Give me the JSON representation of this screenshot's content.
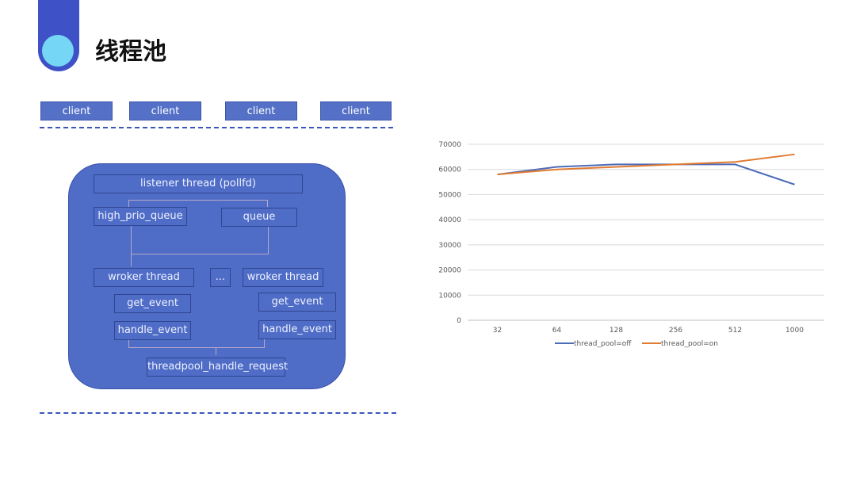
{
  "header": {
    "title": "线程池"
  },
  "clients": [
    "client",
    "client",
    "client",
    "client"
  ],
  "diagram": {
    "listener": "listener thread (pollfd)",
    "high_prio_queue": "high_prio_queue",
    "queue": "queue",
    "worker_left": "wroker thread",
    "ellipsis": "...",
    "worker_right": "wroker thread",
    "get_event_left": "get_event",
    "get_event_right": "get_event",
    "handle_event_left": "handle_event",
    "handle_event_right": "handle_event",
    "request": "threadpool_handle_request"
  },
  "chart_data": {
    "type": "line",
    "categories": [
      "32",
      "64",
      "128",
      "256",
      "512",
      "1000"
    ],
    "series": [
      {
        "name": "thread_pool=off",
        "color": "#4e6bb8",
        "values": [
          58000,
          61000,
          62000,
          62000,
          62000,
          54000
        ]
      },
      {
        "name": "thread_pool=on",
        "color": "#e07b32",
        "values": [
          58000,
          60000,
          61000,
          62000,
          63000,
          66000
        ]
      }
    ],
    "ylim": [
      0,
      70000
    ],
    "yticks": [
      "0",
      "10000",
      "20000",
      "30000",
      "40000",
      "50000",
      "60000",
      "70000"
    ],
    "grid": true,
    "legend": "bottom"
  }
}
